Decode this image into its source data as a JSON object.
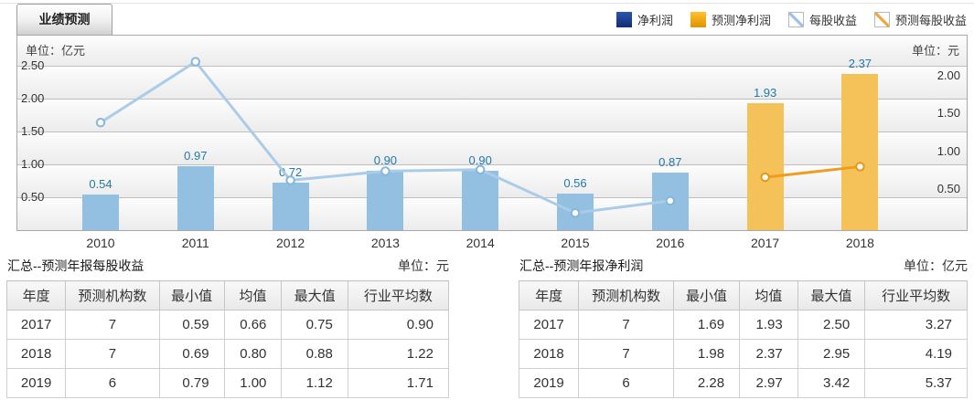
{
  "tab": {
    "label": "业绩预测"
  },
  "legend": [
    {
      "key": "net-profit",
      "label": "净利润",
      "swatch": "square",
      "color": "#2b55b0",
      "color2": "#122e73"
    },
    {
      "key": "forecast-net-profit",
      "label": "预测净利润",
      "swatch": "square",
      "color": "#ffc22e",
      "color2": "#dd9400"
    },
    {
      "key": "eps",
      "label": "每股收益",
      "swatch": "diag",
      "color": "#9cc3e5"
    },
    {
      "key": "forecast-eps",
      "label": "预测每股收益",
      "swatch": "diag",
      "color": "#f0a63a"
    }
  ],
  "chart_data": {
    "type": "combo-bar-line",
    "categories": [
      "2010",
      "2011",
      "2012",
      "2013",
      "2014",
      "2015",
      "2016",
      "2017",
      "2018"
    ],
    "series": [
      {
        "name": "净利润",
        "type": "bar",
        "axis": "left",
        "unit": "亿元",
        "color": "#93c0e0",
        "values": [
          0.54,
          0.97,
          0.72,
          0.9,
          0.9,
          0.56,
          0.87,
          null,
          null
        ]
      },
      {
        "name": "预测净利润",
        "type": "bar",
        "axis": "left",
        "unit": "亿元",
        "color": "#f4c259",
        "values": [
          null,
          null,
          null,
          null,
          null,
          null,
          null,
          1.93,
          2.37
        ]
      },
      {
        "name": "每股收益",
        "type": "line",
        "axis": "right",
        "unit": "元",
        "color": "#abcce9",
        "marker_border": "#85b6dc",
        "values": [
          1.38,
          2.18,
          0.62,
          0.74,
          0.76,
          0.19,
          0.35,
          null,
          null
        ],
        "estimated": true
      },
      {
        "name": "预测每股收益",
        "type": "line",
        "axis": "right",
        "unit": "元",
        "color": "#ee9d1e",
        "marker_border": "#e69616",
        "values": [
          null,
          null,
          null,
          null,
          null,
          null,
          null,
          0.66,
          0.8
        ]
      }
    ],
    "left_axis": {
      "unit": "单位：亿元",
      "ticks": [
        2.5,
        2.0,
        1.5,
        1.0,
        0.5
      ],
      "min": 0
    },
    "right_axis": {
      "unit": "单位：元",
      "ticks": [
        2.0,
        1.5,
        1.0,
        0.5
      ],
      "min": 0
    },
    "grid": true,
    "legend_position": "top-right",
    "bar_label_color": "#2378aa"
  },
  "tables": [
    {
      "caption": "汇总--预测年报每股收益",
      "unit": "单位：元",
      "headers": [
        "年度",
        "预测机构数",
        "最小值",
        "均值",
        "最大值",
        "行业平均数"
      ],
      "rows": [
        [
          "2017",
          "7",
          "0.59",
          "0.66",
          "0.75",
          "0.90"
        ],
        [
          "2018",
          "7",
          "0.69",
          "0.80",
          "0.88",
          "1.22"
        ],
        [
          "2019",
          "6",
          "0.79",
          "1.00",
          "1.12",
          "1.71"
        ]
      ]
    },
    {
      "caption": "汇总--预测年报净利润",
      "unit": "单位：亿元",
      "headers": [
        "年度",
        "预测机构数",
        "最小值",
        "均值",
        "最大值",
        "行业平均数"
      ],
      "rows": [
        [
          "2017",
          "7",
          "1.69",
          "1.93",
          "2.50",
          "3.27"
        ],
        [
          "2018",
          "7",
          "1.98",
          "2.37",
          "2.95",
          "4.19"
        ],
        [
          "2019",
          "6",
          "2.28",
          "2.97",
          "3.42",
          "5.37"
        ]
      ]
    }
  ]
}
